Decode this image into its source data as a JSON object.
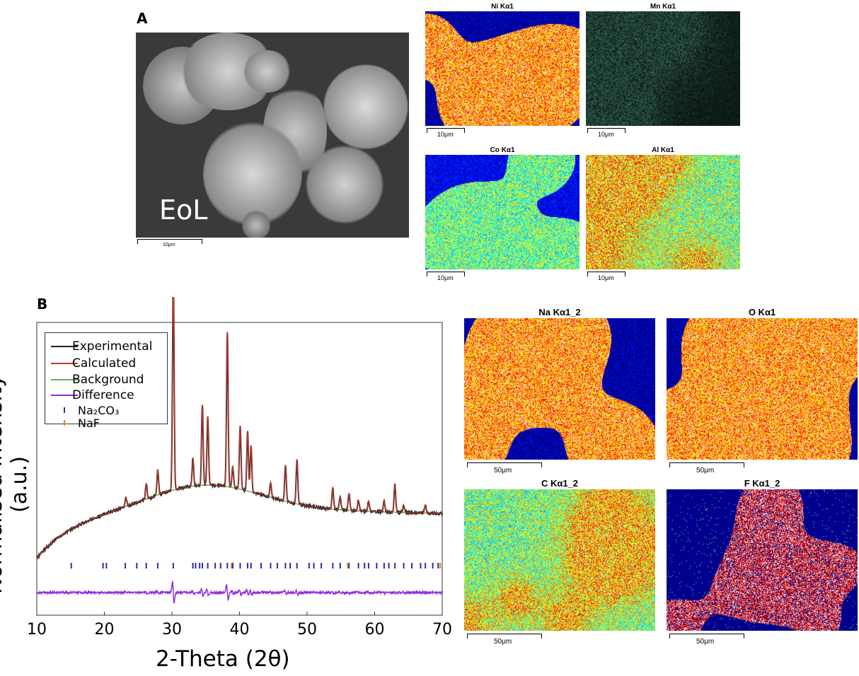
{
  "panels": {
    "a_letter": "A",
    "b_letter": "B"
  },
  "sem": {
    "label": "EoL",
    "scale": "10μm"
  },
  "eds_top": [
    {
      "title": "Ni Kα1",
      "scale": "10μm",
      "palette": "nickel"
    },
    {
      "title": "Mn Kα1",
      "scale": "10μm",
      "palette": "manganese"
    },
    {
      "title": "Co Kα1",
      "scale": "10μm",
      "palette": "cobalt"
    },
    {
      "title": "Al Kα1",
      "scale": "10μm",
      "palette": "aluminium"
    }
  ],
  "eds_bottom": [
    {
      "title": "Na Kα1_2",
      "scale": "50μm",
      "palette": "sodium"
    },
    {
      "title": "O Kα1",
      "scale": "50μm",
      "palette": "oxygen"
    },
    {
      "title": "C Kα1_2",
      "scale": "50μm",
      "palette": "carbon"
    },
    {
      "title": "F Kα1_2",
      "scale": "50μm",
      "palette": "fluorine"
    }
  ],
  "chart_data": {
    "type": "line",
    "xlabel": "2-Theta (2θ)",
    "ylabel": "Normalised Intensity (a.u.)",
    "xlim": [
      10,
      70
    ],
    "xticks": [
      10,
      20,
      30,
      40,
      50,
      60,
      70
    ],
    "legend": [
      {
        "name": "Experimental",
        "color": "#222222",
        "kind": "line"
      },
      {
        "name": "Calculated",
        "color": "#c0392b",
        "kind": "line"
      },
      {
        "name": "Background",
        "color": "#5cb85c",
        "kind": "line"
      },
      {
        "name": "Difference",
        "color": "#8e2de2",
        "kind": "line"
      },
      {
        "name": "Na₂CO₃",
        "color": "#2a2aa8",
        "kind": "tick"
      },
      {
        "name": "NaF",
        "color": "#e08a1e",
        "kind": "tick"
      }
    ],
    "peaks": [
      {
        "x": 23.2,
        "h": 0.04
      },
      {
        "x": 26.2,
        "h": 0.07
      },
      {
        "x": 27.9,
        "h": 0.12
      },
      {
        "x": 30.2,
        "h": 1.0
      },
      {
        "x": 33.1,
        "h": 0.13
      },
      {
        "x": 34.5,
        "h": 0.38
      },
      {
        "x": 35.3,
        "h": 0.32
      },
      {
        "x": 38.2,
        "h": 0.73
      },
      {
        "x": 39.0,
        "h": 0.1
      },
      {
        "x": 40.1,
        "h": 0.3
      },
      {
        "x": 41.2,
        "h": 0.28
      },
      {
        "x": 41.7,
        "h": 0.22
      },
      {
        "x": 44.6,
        "h": 0.07
      },
      {
        "x": 46.8,
        "h": 0.17
      },
      {
        "x": 48.5,
        "h": 0.21
      },
      {
        "x": 53.8,
        "h": 0.1
      },
      {
        "x": 54.9,
        "h": 0.06
      },
      {
        "x": 56.2,
        "h": 0.08
      },
      {
        "x": 57.6,
        "h": 0.05
      },
      {
        "x": 59.1,
        "h": 0.05
      },
      {
        "x": 61.4,
        "h": 0.05
      },
      {
        "x": 63.0,
        "h": 0.13
      },
      {
        "x": 64.3,
        "h": 0.03
      },
      {
        "x": 67.5,
        "h": 0.04
      }
    ],
    "na2co3_ticks": [
      15.1,
      19.8,
      20.3,
      23.1,
      24.8,
      26.2,
      27.9,
      30.2,
      33.1,
      33.5,
      34.1,
      34.5,
      35.3,
      36.4,
      37.2,
      38.2,
      39.0,
      40.1,
      41.2,
      41.7,
      43.2,
      44.6,
      45.6,
      46.8,
      47.5,
      48.5,
      50.3,
      51.0,
      52.1,
      53.8,
      54.9,
      56.2,
      57.6,
      58.5,
      59.1,
      60.3,
      61.4,
      62.1,
      63.0,
      64.3,
      65.5,
      66.8,
      67.5,
      68.6,
      69.4
    ],
    "naf_ticks": [
      38.8,
      56.0,
      69.7
    ]
  }
}
